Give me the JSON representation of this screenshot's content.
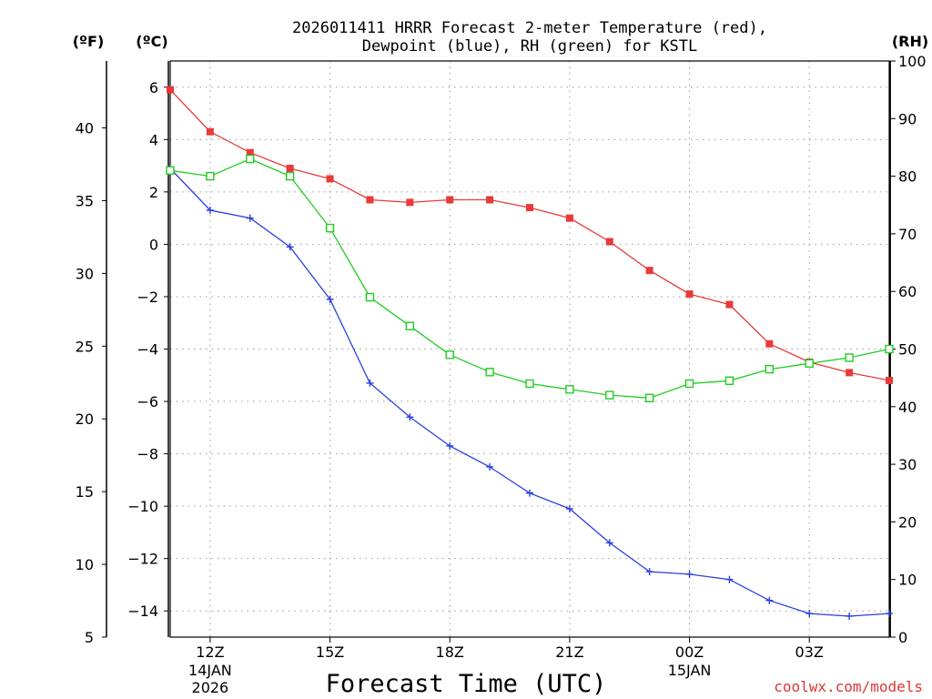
{
  "chart_data": {
    "type": "line",
    "title_line1": "2026011411 HRRR Forecast 2-meter Temperature (red),",
    "title_line2": "Dewpoint (blue), RH (green) for KSTL",
    "xlabel": "Forecast Time (UTC)",
    "unit_f": "(ºF)",
    "unit_c": "(ºC)",
    "unit_rh": "(RH)",
    "credit": "coolwx.com/models",
    "x_hours": [
      11,
      12,
      13,
      14,
      15,
      16,
      17,
      18,
      19,
      20,
      21,
      22,
      23,
      24,
      25,
      26,
      27,
      28,
      29
    ],
    "xlim": [
      11,
      29
    ],
    "x_ticks": [
      {
        "hour": 12,
        "label": "12Z",
        "sub1": "14JAN",
        "sub2": "2026"
      },
      {
        "hour": 15,
        "label": "15Z",
        "sub1": "",
        "sub2": ""
      },
      {
        "hour": 18,
        "label": "18Z",
        "sub1": "",
        "sub2": ""
      },
      {
        "hour": 21,
        "label": "21Z",
        "sub1": "",
        "sub2": ""
      },
      {
        "hour": 24,
        "label": "00Z",
        "sub1": "15JAN",
        "sub2": ""
      },
      {
        "hour": 27,
        "label": "03Z",
        "sub1": "",
        "sub2": ""
      }
    ],
    "y_c_lim": [
      -15,
      7
    ],
    "y_c_ticks": [
      "6",
      "4",
      "2",
      "0",
      "−2",
      "−4",
      "−6",
      "−8",
      "−10",
      "−12",
      "−14"
    ],
    "y_c_tick_values": [
      6,
      4,
      2,
      0,
      -2,
      -4,
      -6,
      -8,
      -10,
      -12,
      -14
    ],
    "y_f_ticks": [
      "40",
      "35",
      "30",
      "25",
      "20",
      "15",
      "10",
      "5"
    ],
    "y_f_tick_values": [
      40,
      35,
      30,
      25,
      20,
      15,
      10,
      5
    ],
    "y_rh_lim": [
      0,
      100
    ],
    "y_rh_ticks": [
      "100",
      "90",
      "80",
      "70",
      "60",
      "50",
      "40",
      "30",
      "20",
      "10",
      "0"
    ],
    "y_rh_tick_values": [
      100,
      90,
      80,
      70,
      60,
      50,
      40,
      30,
      20,
      10,
      0
    ],
    "series": [
      {
        "name": "Temperature",
        "axis": "c",
        "color": "#e83a3a",
        "marker": "filled-square",
        "values": [
          5.9,
          4.3,
          3.5,
          2.9,
          2.5,
          1.7,
          1.6,
          1.7,
          1.7,
          1.4,
          1.0,
          0.1,
          -1.0,
          -1.9,
          -2.3,
          -3.8,
          -4.5,
          -4.9,
          -5.2
        ]
      },
      {
        "name": "Dewpoint",
        "axis": "c",
        "color": "#2a3fe0",
        "marker": "plus",
        "values": [
          2.9,
          1.3,
          1.0,
          -0.1,
          -2.1,
          -5.3,
          -6.6,
          -7.7,
          -8.5,
          -9.5,
          -10.1,
          -11.4,
          -12.5,
          -12.6,
          -12.8,
          -13.6,
          -14.1,
          -14.2,
          -14.1
        ]
      },
      {
        "name": "RH",
        "axis": "rh",
        "color": "#22cc22",
        "marker": "open-square",
        "values": [
          81,
          80,
          83,
          80,
          71,
          59,
          54,
          49,
          46,
          44,
          43,
          42,
          41.5,
          44,
          44.5,
          46.5,
          47.5,
          48.5,
          50
        ]
      }
    ]
  }
}
